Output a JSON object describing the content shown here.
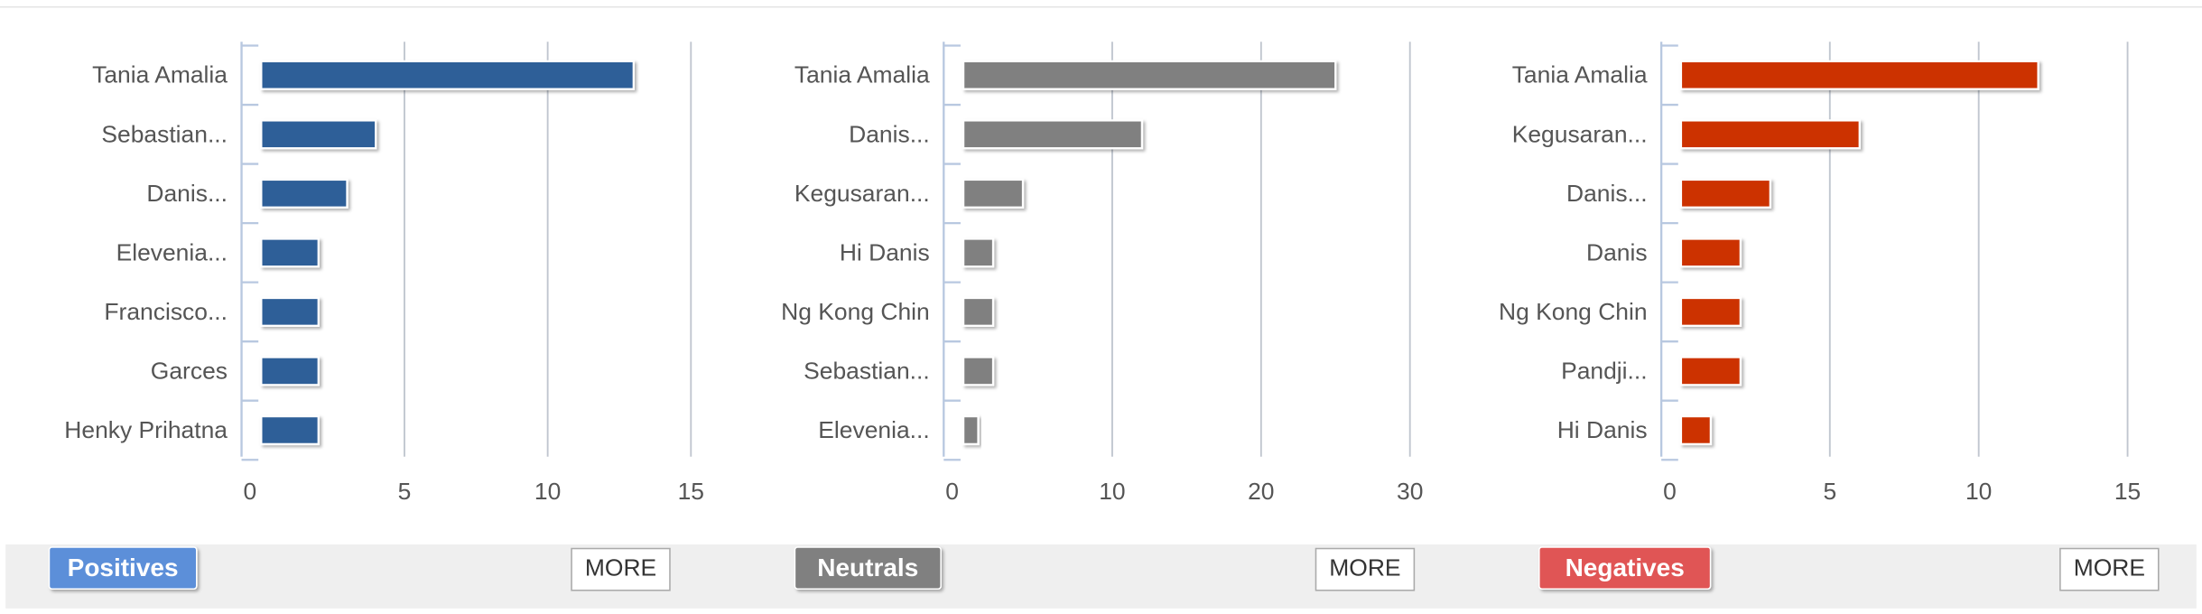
{
  "chart_data": [
    {
      "type": "bar",
      "orientation": "horizontal",
      "color": "#2f5f98",
      "categories": [
        "Tania Amalia",
        "Sebastian...",
        "Danis...",
        "Elevenia...",
        "Francisco...",
        "Garces",
        "Henky Prihatna"
      ],
      "values": [
        13,
        4,
        3,
        2,
        2,
        2,
        2
      ],
      "xlim": [
        0,
        15
      ],
      "xticks": [
        0,
        5,
        10,
        15
      ],
      "grid": true
    },
    {
      "type": "bar",
      "orientation": "horizontal",
      "color": "#808080",
      "categories": [
        "Tania Amalia",
        "Danis...",
        "Kegusaran...",
        "Hi Danis",
        "Ng Kong Chin",
        "Sebastian...",
        "Elevenia..."
      ],
      "values": [
        25,
        12,
        4,
        2,
        2,
        2,
        1
      ],
      "xlim": [
        0,
        30
      ],
      "xticks": [
        0,
        10,
        20,
        30
      ],
      "grid": true
    },
    {
      "type": "bar",
      "orientation": "horizontal",
      "color": "#cc3300",
      "categories": [
        "Tania Amalia",
        "Kegusaran...",
        "Danis...",
        "Danis",
        "Ng Kong Chin",
        "Pandji...",
        "Hi Danis"
      ],
      "values": [
        12,
        6,
        3,
        2,
        2,
        2,
        1
      ],
      "xlim": [
        0,
        15
      ],
      "xticks": [
        0,
        5,
        10,
        15
      ],
      "grid": true
    }
  ],
  "footer": [
    {
      "label": "Positives",
      "action": "MORE",
      "color": "#5b8fd9"
    },
    {
      "label": "Neutrals",
      "action": "MORE",
      "color": "#808080"
    },
    {
      "label": "Negatives",
      "action": "MORE",
      "color": "#e05555"
    }
  ]
}
